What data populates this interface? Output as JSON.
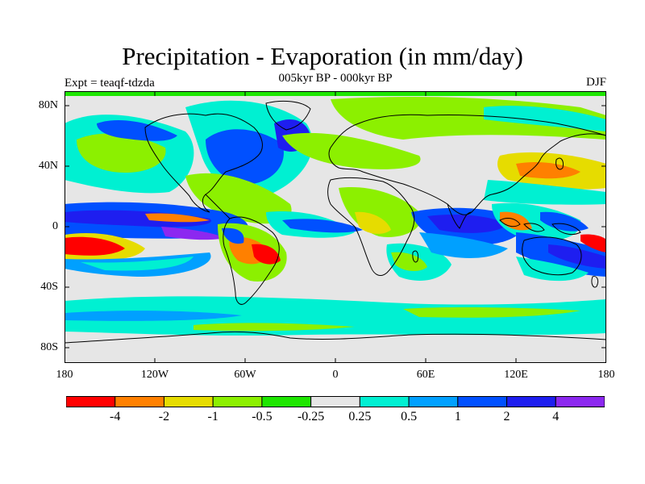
{
  "title": "Precipitation - Evaporation (in mm/day)",
  "subtitle": "005kyr BP - 000kyr BP",
  "left_string": "Expt = teaqf-tdzda",
  "right_string": "DJF",
  "lat_labels": [
    "80N",
    "40N",
    "0",
    "40S",
    "80S"
  ],
  "lon_labels": [
    "180",
    "120W",
    "60W",
    "0",
    "60E",
    "120E",
    "180"
  ],
  "colorbar": {
    "colors": [
      "#ff0000",
      "#ff8000",
      "#e6dc00",
      "#8cf000",
      "#1ee600",
      "#e6e6e6",
      "#00f0d2",
      "#00a0ff",
      "#0050ff",
      "#1e1ef0",
      "#8c28f0"
    ],
    "labels": [
      "-4",
      "-2",
      "-1",
      "-0.5",
      "-0.25",
      "0.25",
      "0.5",
      "1",
      "2",
      "4"
    ]
  },
  "map": {
    "projection": "cylindrical equidistant",
    "lon_range": [
      -180,
      180
    ],
    "lat_range": [
      -90,
      90
    ],
    "land_outline": "coastlines"
  }
}
